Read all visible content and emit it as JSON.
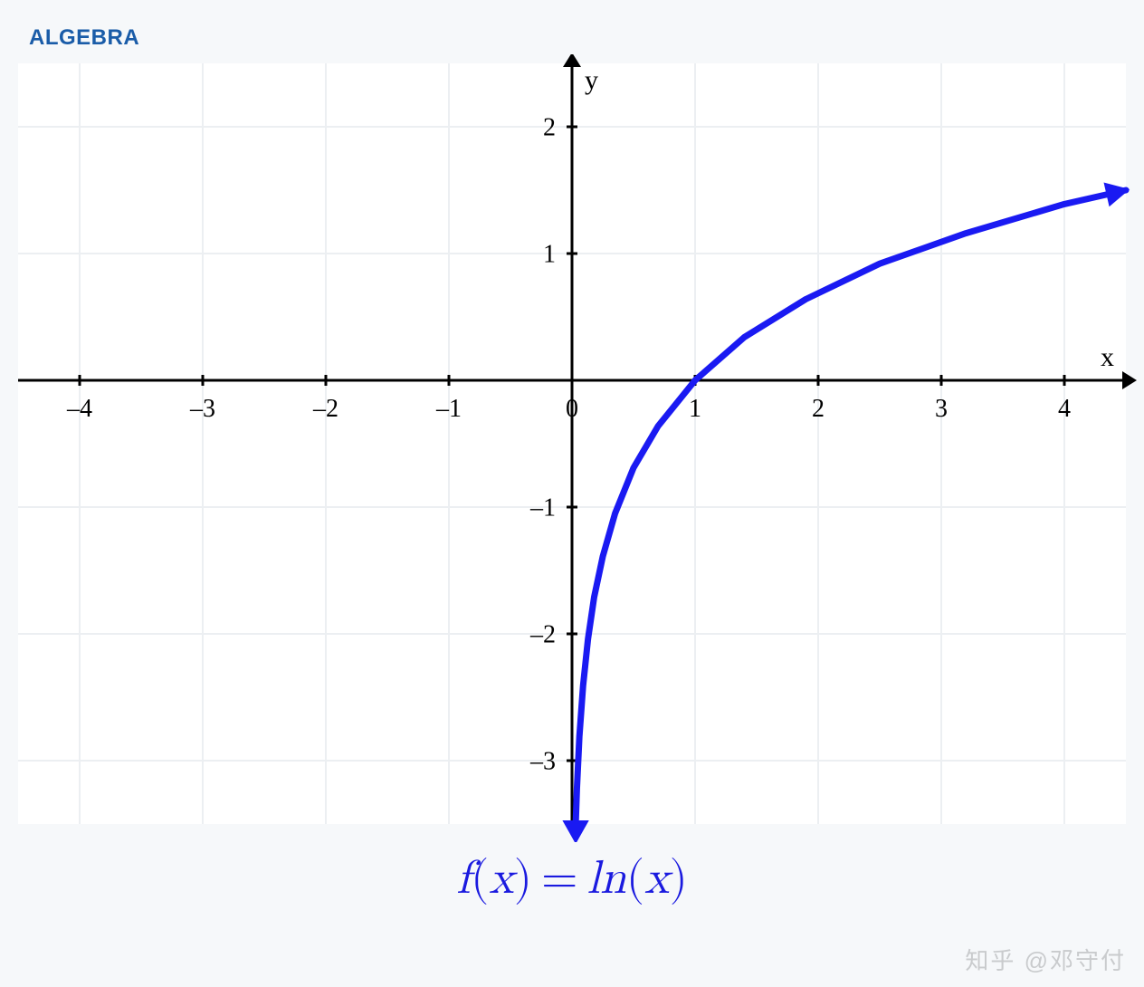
{
  "header": {
    "label": "ALGEBRA",
    "color": "#1a5ca8",
    "fontsize": 24
  },
  "chart": {
    "type": "line",
    "function": "ln(x)",
    "background_color": "#ffffff",
    "page_background": "#f6f8fa",
    "grid_color": "#eceff2",
    "grid_stroke": 2,
    "axis_color": "#000000",
    "axis_stroke": 3,
    "tick_length": 12,
    "tick_label_fontsize": 28,
    "tick_label_color": "#000000",
    "axis_label_fontsize": 30,
    "xlabel": "x",
    "ylabel": "y",
    "xlim": [
      -4.5,
      4.5
    ],
    "ylim": [
      -3.5,
      2.5
    ],
    "xticks": [
      -4,
      -3,
      -2,
      -1,
      0,
      1,
      2,
      3,
      4
    ],
    "yticks": [
      -3,
      -2,
      -1,
      1,
      2
    ],
    "xtick_labels": [
      "–4",
      "–3",
      "–2",
      "–1",
      "0",
      "1",
      "2",
      "3",
      "4"
    ],
    "ytick_labels": [
      "–3",
      "–2",
      "–1",
      "1",
      "2"
    ],
    "curve_color": "#1a1af2",
    "curve_stroke": 7,
    "arrow_size": 16,
    "curve_arrow_size": 22,
    "curve_points": [
      [
        0.03,
        -3.5
      ],
      [
        0.04,
        -3.22
      ],
      [
        0.06,
        -2.81
      ],
      [
        0.09,
        -2.41
      ],
      [
        0.13,
        -2.04
      ],
      [
        0.18,
        -1.71
      ],
      [
        0.25,
        -1.39
      ],
      [
        0.35,
        -1.05
      ],
      [
        0.5,
        -0.69
      ],
      [
        0.7,
        -0.36
      ],
      [
        1.0,
        0.0
      ],
      [
        1.4,
        0.34
      ],
      [
        1.9,
        0.64
      ],
      [
        2.5,
        0.92
      ],
      [
        3.2,
        1.16
      ],
      [
        4.0,
        1.39
      ],
      [
        4.5,
        1.5
      ]
    ]
  },
  "formula": {
    "text_lhs": "f",
    "text_var": "x",
    "text_rhs": "ln",
    "color": "#1a1adf",
    "fontsize": 52
  },
  "watermark": {
    "text": "知乎 @邓守付",
    "color": "#c9cbcd",
    "fontsize": 26
  }
}
